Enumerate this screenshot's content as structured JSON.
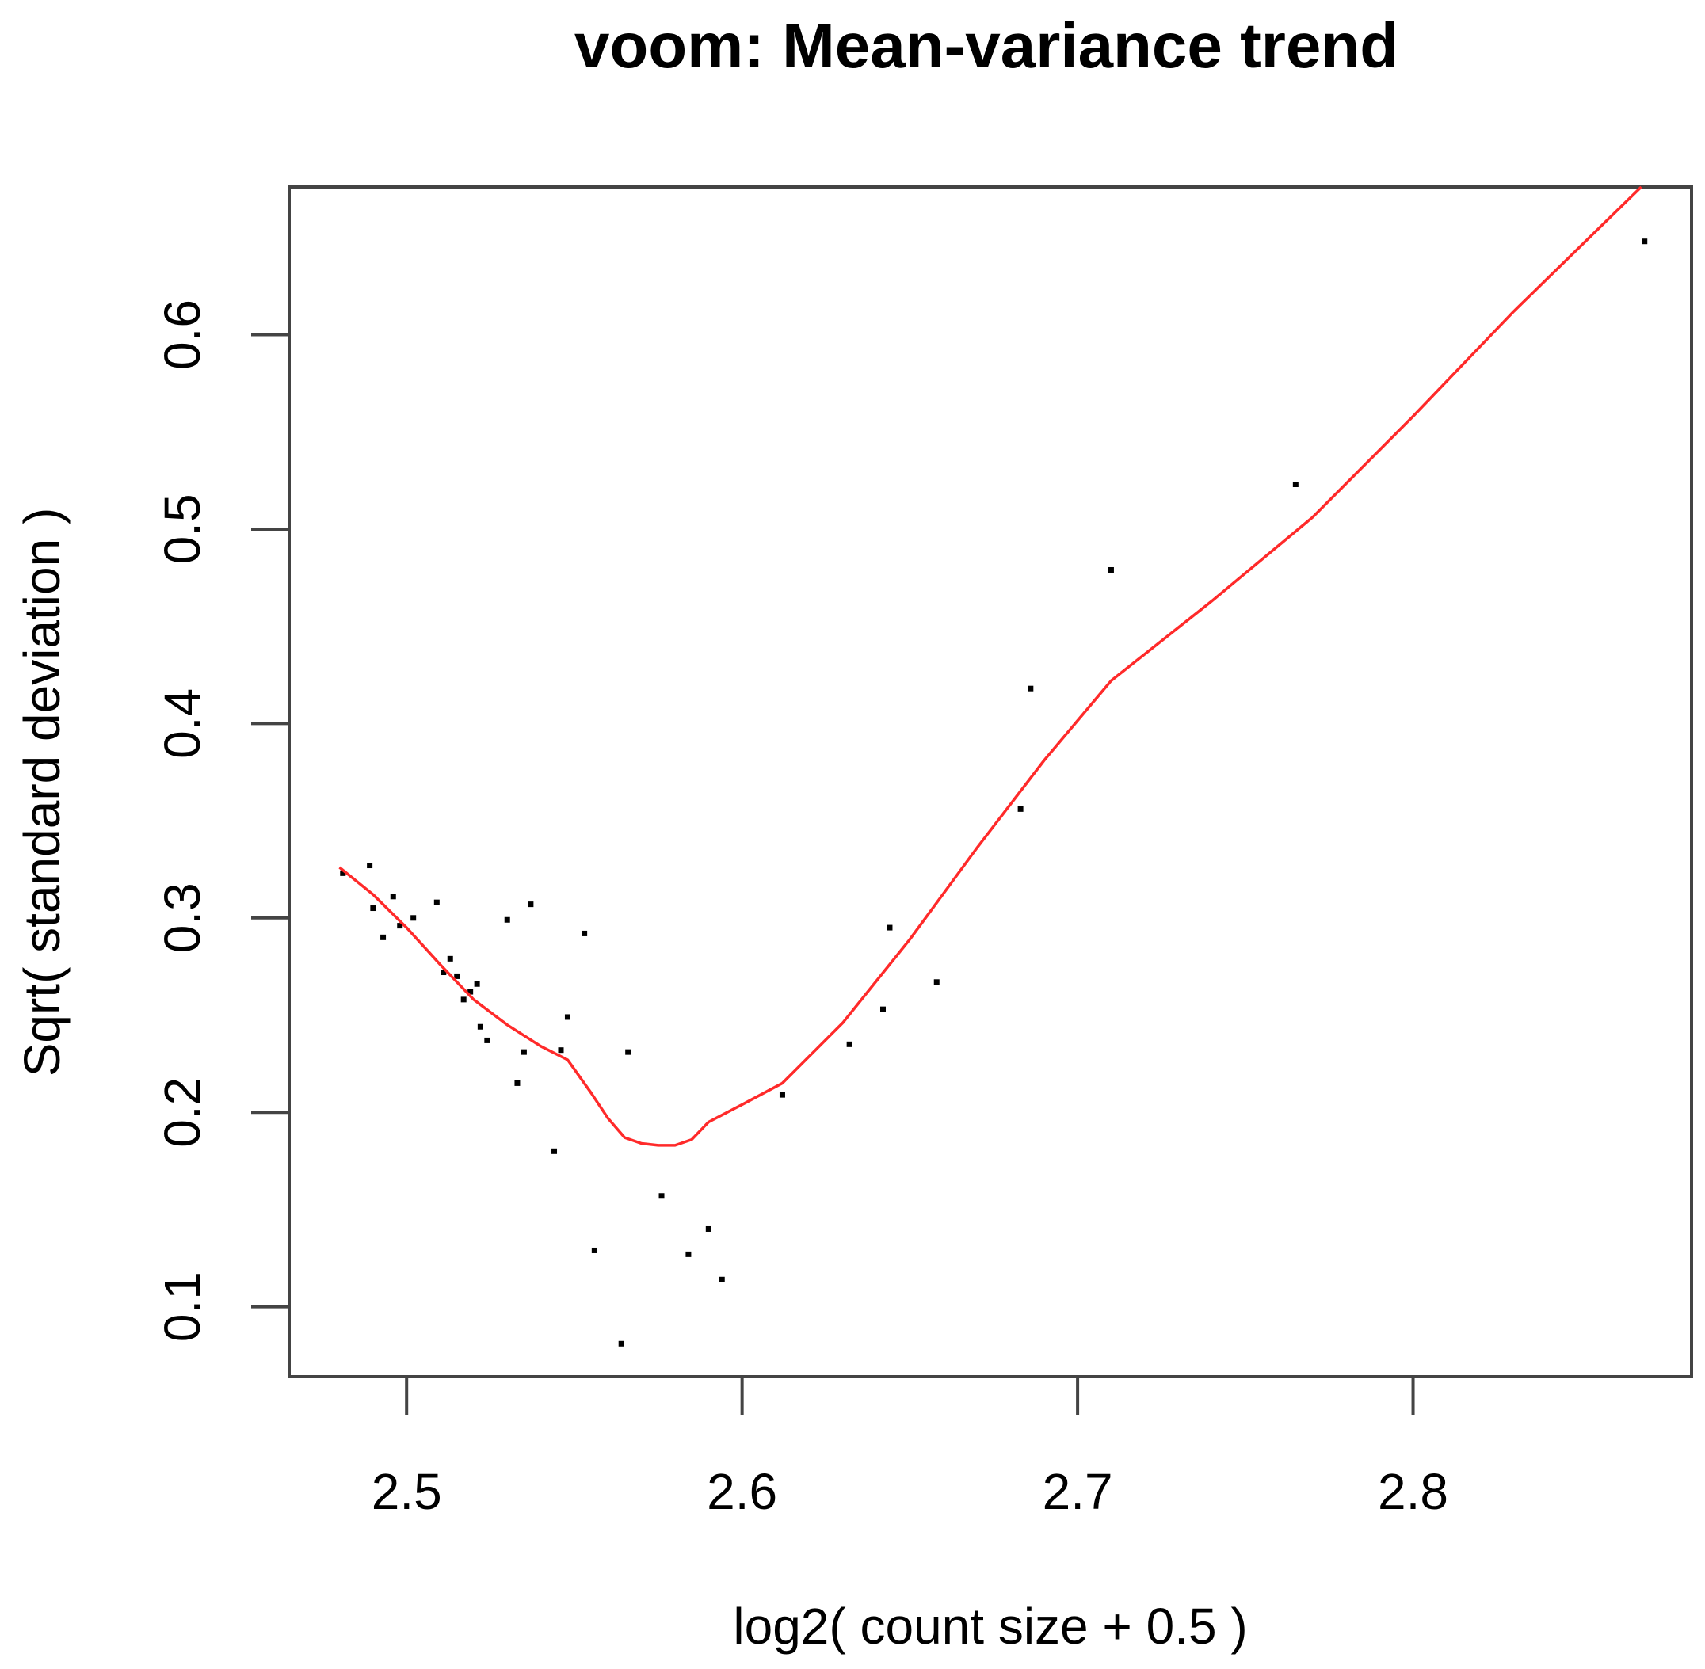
{
  "chart_data": {
    "type": "scatter",
    "title": "voom: Mean-variance trend",
    "xlabel": "log2( count size + 0.5 )",
    "ylabel": "Sqrt( standard deviation )",
    "xlim": [
      2.465,
      2.883
    ],
    "ylim": [
      0.064,
      0.676
    ],
    "x_ticks": [
      2.5,
      2.6,
      2.7,
      2.8
    ],
    "x_tick_labels": [
      "2.5",
      "2.6",
      "2.7",
      "2.8"
    ],
    "y_ticks": [
      0.1,
      0.2,
      0.3,
      0.4,
      0.5,
      0.6
    ],
    "y_tick_labels": [
      "0.1",
      "0.2",
      "0.3",
      "0.4",
      "0.5",
      "0.6"
    ],
    "grid": false,
    "colors": {
      "points": "#000000",
      "trend": "#ff2a2a"
    },
    "points": [
      {
        "x": 2.481,
        "y": 0.323
      },
      {
        "x": 2.489,
        "y": 0.327
      },
      {
        "x": 2.49,
        "y": 0.305
      },
      {
        "x": 2.493,
        "y": 0.29
      },
      {
        "x": 2.496,
        "y": 0.311
      },
      {
        "x": 2.498,
        "y": 0.296
      },
      {
        "x": 2.502,
        "y": 0.3
      },
      {
        "x": 2.509,
        "y": 0.308
      },
      {
        "x": 2.511,
        "y": 0.272
      },
      {
        "x": 2.513,
        "y": 0.279
      },
      {
        "x": 2.515,
        "y": 0.27
      },
      {
        "x": 2.517,
        "y": 0.258
      },
      {
        "x": 2.519,
        "y": 0.262
      },
      {
        "x": 2.521,
        "y": 0.266
      },
      {
        "x": 2.522,
        "y": 0.244
      },
      {
        "x": 2.524,
        "y": 0.237
      },
      {
        "x": 2.53,
        "y": 0.299
      },
      {
        "x": 2.533,
        "y": 0.215
      },
      {
        "x": 2.535,
        "y": 0.231
      },
      {
        "x": 2.537,
        "y": 0.307
      },
      {
        "x": 2.544,
        "y": 0.18
      },
      {
        "x": 2.546,
        "y": 0.232
      },
      {
        "x": 2.548,
        "y": 0.249
      },
      {
        "x": 2.553,
        "y": 0.292
      },
      {
        "x": 2.556,
        "y": 0.129
      },
      {
        "x": 2.564,
        "y": 0.081
      },
      {
        "x": 2.566,
        "y": 0.231
      },
      {
        "x": 2.576,
        "y": 0.157
      },
      {
        "x": 2.584,
        "y": 0.127
      },
      {
        "x": 2.59,
        "y": 0.14
      },
      {
        "x": 2.594,
        "y": 0.114
      },
      {
        "x": 2.612,
        "y": 0.209
      },
      {
        "x": 2.632,
        "y": 0.235
      },
      {
        "x": 2.642,
        "y": 0.253
      },
      {
        "x": 2.644,
        "y": 0.295
      },
      {
        "x": 2.658,
        "y": 0.267
      },
      {
        "x": 2.683,
        "y": 0.356
      },
      {
        "x": 2.686,
        "y": 0.418
      },
      {
        "x": 2.71,
        "y": 0.479
      },
      {
        "x": 2.765,
        "y": 0.523
      },
      {
        "x": 2.869,
        "y": 0.648
      }
    ],
    "trend_line": [
      {
        "x": 2.48,
        "y": 0.326
      },
      {
        "x": 2.49,
        "y": 0.312
      },
      {
        "x": 2.5,
        "y": 0.295
      },
      {
        "x": 2.51,
        "y": 0.276
      },
      {
        "x": 2.52,
        "y": 0.258
      },
      {
        "x": 2.53,
        "y": 0.245
      },
      {
        "x": 2.54,
        "y": 0.234
      },
      {
        "x": 2.548,
        "y": 0.227
      },
      {
        "x": 2.555,
        "y": 0.21
      },
      {
        "x": 2.56,
        "y": 0.197
      },
      {
        "x": 2.565,
        "y": 0.187
      },
      {
        "x": 2.57,
        "y": 0.184
      },
      {
        "x": 2.575,
        "y": 0.183
      },
      {
        "x": 2.58,
        "y": 0.183
      },
      {
        "x": 2.585,
        "y": 0.186
      },
      {
        "x": 2.59,
        "y": 0.195
      },
      {
        "x": 2.6,
        "y": 0.204
      },
      {
        "x": 2.612,
        "y": 0.215
      },
      {
        "x": 2.63,
        "y": 0.246
      },
      {
        "x": 2.65,
        "y": 0.289
      },
      {
        "x": 2.67,
        "y": 0.336
      },
      {
        "x": 2.69,
        "y": 0.381
      },
      {
        "x": 2.71,
        "y": 0.422
      },
      {
        "x": 2.74,
        "y": 0.463
      },
      {
        "x": 2.77,
        "y": 0.506
      },
      {
        "x": 2.8,
        "y": 0.558
      },
      {
        "x": 2.83,
        "y": 0.612
      },
      {
        "x": 2.868,
        "y": 0.676
      }
    ]
  }
}
